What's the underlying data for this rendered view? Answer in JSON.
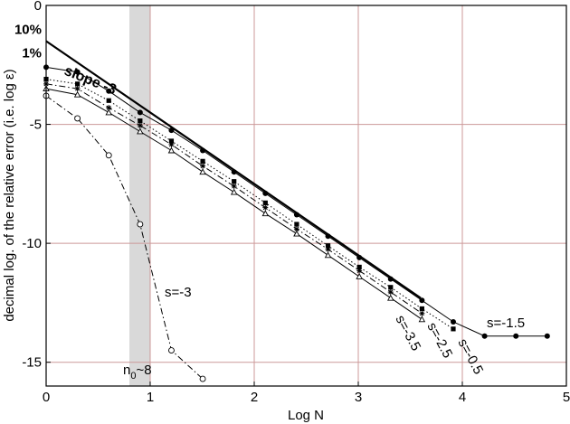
{
  "chart_data": {
    "type": "line",
    "title": "",
    "xlabel": "Log N",
    "ylabel": "decimal log. of the relative error (i.e. log ε)",
    "xlim": [
      0,
      5
    ],
    "ylim": [
      -16,
      0
    ],
    "xticks": [
      "0",
      "1",
      "2",
      "3",
      "4",
      "5"
    ],
    "yticks": [
      {
        "value": 0,
        "label": "0"
      },
      {
        "value": -5,
        "label": "-5"
      },
      {
        "value": -10,
        "label": "-10"
      },
      {
        "value": -15,
        "label": "-15"
      }
    ],
    "extra_y_labels": [
      {
        "value": -1,
        "label": "10%"
      },
      {
        "value": -2,
        "label": "1%"
      }
    ],
    "grid": true,
    "grid_color": "#cc9999",
    "shaded_band": {
      "x_from": 0.8,
      "x_to": 1.0,
      "color": "#d9d9d9"
    },
    "series": [
      {
        "name": "slope -3",
        "style": "solid-bold",
        "marker": "none",
        "x": [
          0,
          3.6
        ],
        "y": [
          -1.5,
          -12.3
        ]
      },
      {
        "name": "s=-1.5",
        "style": "solid",
        "marker": "filled-circle",
        "x": [
          0,
          0.301,
          0.602,
          0.903,
          1.204,
          1.505,
          1.806,
          2.107,
          2.408,
          2.709,
          3.01,
          3.311,
          3.612,
          3.913,
          4.214,
          4.515,
          4.816
        ],
        "y": [
          -2.6,
          -2.8,
          -3.6,
          -4.5,
          -5.25,
          -6.1,
          -7.0,
          -7.9,
          -8.8,
          -9.7,
          -10.6,
          -11.5,
          -12.4,
          -13.3,
          -13.9,
          -13.9,
          -13.9
        ]
      },
      {
        "name": "s=-0.5",
        "style": "dotted",
        "marker": "filled-square",
        "x": [
          0,
          0.301,
          0.602,
          0.903,
          1.204,
          1.505,
          1.806,
          2.107,
          2.408,
          2.709,
          3.01,
          3.311,
          3.612,
          3.913
        ],
        "y": [
          -3.1,
          -3.3,
          -4.0,
          -4.85,
          -5.7,
          -6.55,
          -7.4,
          -8.3,
          -9.2,
          -10.1,
          -11.0,
          -11.85,
          -12.75,
          -13.6
        ]
      },
      {
        "name": "s=-2.5",
        "style": "dash-dot",
        "marker": "star",
        "x": [
          0,
          0.301,
          0.602,
          0.903,
          1.204,
          1.505,
          1.806,
          2.107,
          2.408,
          2.709,
          3.01,
          3.311,
          3.612
        ],
        "y": [
          -3.3,
          -3.5,
          -4.3,
          -5.05,
          -5.85,
          -6.75,
          -7.6,
          -8.5,
          -9.4,
          -10.25,
          -11.15,
          -12.05,
          -12.95
        ]
      },
      {
        "name": "s=-3.5",
        "style": "solid",
        "marker": "triangle",
        "x": [
          0,
          0.301,
          0.602,
          0.903,
          1.204,
          1.505,
          1.806,
          2.107,
          2.408,
          2.709,
          3.01,
          3.311,
          3.612
        ],
        "y": [
          -3.5,
          -3.75,
          -4.5,
          -5.3,
          -6.1,
          -7.0,
          -7.85,
          -8.75,
          -9.6,
          -10.5,
          -11.4,
          -12.3,
          -13.2
        ]
      },
      {
        "name": "s=-3",
        "style": "dash-dot",
        "marker": "open-circle",
        "x": [
          0,
          0.301,
          0.602,
          0.903,
          1.204,
          1.505
        ],
        "y": [
          -3.8,
          -4.75,
          -6.3,
          -9.2,
          -14.5,
          -15.7
        ]
      }
    ],
    "annotations": [
      {
        "text": "slope -3",
        "bold": true
      },
      {
        "text": "s=-1.5"
      },
      {
        "text": "s=-0.5"
      },
      {
        "text": "s=-2.5"
      },
      {
        "text": "s=-3.5"
      },
      {
        "text": "s=-3"
      },
      {
        "text": "n",
        "sub": "0",
        "suffix": "~8"
      }
    ]
  }
}
